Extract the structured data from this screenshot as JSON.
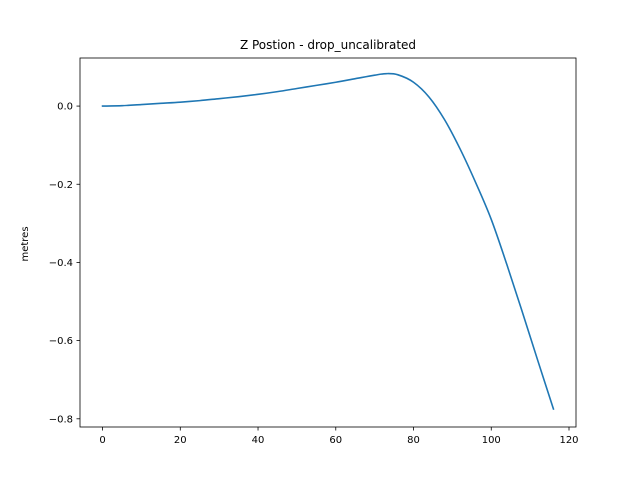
{
  "chart_data": {
    "type": "line",
    "title": "Z Postion - drop_uncalibrated",
    "xlabel": "",
    "ylabel": "metres",
    "xlim": [
      -5.8,
      121.8
    ],
    "ylim": [
      -0.821,
      0.123
    ],
    "x_ticks": [
      0,
      20,
      40,
      60,
      80,
      100,
      120
    ],
    "y_ticks": [
      0.0,
      -0.2,
      -0.4,
      -0.6,
      -0.8
    ],
    "x_tick_labels": [
      "0",
      "20",
      "40",
      "60",
      "80",
      "100",
      "120"
    ],
    "y_tick_labels": [
      "0.0",
      "−0.2",
      "−0.4",
      "−0.6",
      "−0.8"
    ],
    "grid": false,
    "series": [
      {
        "color": "#1f77b4",
        "x": [
          0,
          5,
          10,
          15,
          20,
          25,
          30,
          35,
          40,
          45,
          50,
          55,
          60,
          65,
          70,
          73,
          76,
          80,
          84,
          88,
          92,
          96,
          100,
          104,
          108,
          112,
          116
        ],
        "y": [
          0.0,
          0.001,
          0.004,
          0.007,
          0.01,
          0.014,
          0.019,
          0.024,
          0.03,
          0.037,
          0.045,
          0.053,
          0.061,
          0.07,
          0.079,
          0.083,
          0.08,
          0.061,
          0.023,
          -0.035,
          -0.11,
          -0.196,
          -0.29,
          -0.405,
          -0.527,
          -0.652,
          -0.775
        ]
      }
    ]
  }
}
